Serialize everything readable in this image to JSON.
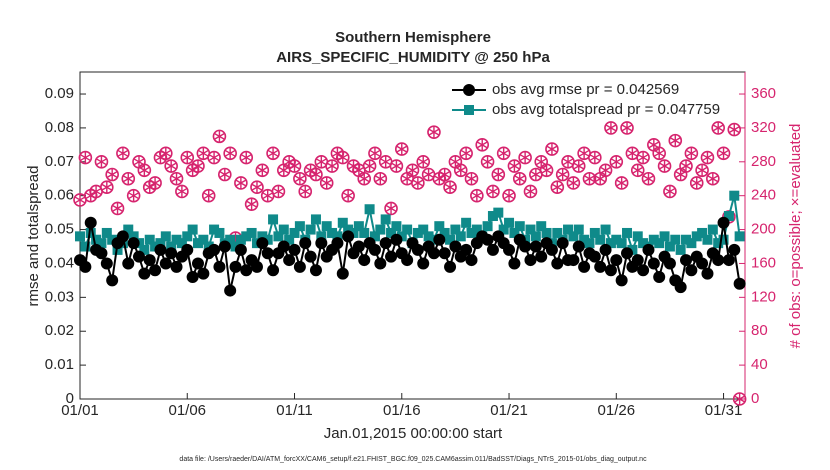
{
  "chart_data": {
    "type": "line",
    "title": "Southern Hemisphere",
    "subtitle": "AIRS_SPECIFIC_HUMIDITY @ 250 hPa",
    "xlabel": "Jan.01,2015 00:00:00 start",
    "ylabel": "rmse and totalspread",
    "y2label": "# of obs: o=possible; ×=evaluated",
    "footnote": "data file: /Users/raeder/DAI/ATM_forcXX/CAM6_setup/f.e21.FHIST_BGC.f09_025.CAM6assim.011/BadSST/Diags_NTrS_2015-01/obs_diag_output.nc",
    "legend": "upper right",
    "xlim": [
      0,
      31
    ],
    "xticks": [
      {
        "value": 0,
        "label": "01/01"
      },
      {
        "value": 5,
        "label": "01/06"
      },
      {
        "value": 10,
        "label": "01/11"
      },
      {
        "value": 15,
        "label": "01/16"
      },
      {
        "value": 20,
        "label": "01/21"
      },
      {
        "value": 25,
        "label": "01/26"
      },
      {
        "value": 30,
        "label": "01/31"
      }
    ],
    "ylim": [
      0,
      0.0965
    ],
    "yticks": [
      0,
      0.01,
      0.02,
      0.03,
      0.04,
      0.05,
      0.06,
      0.07,
      0.08,
      0.09
    ],
    "y2lim": [
      0,
      386
    ],
    "y2ticks": [
      0,
      40,
      80,
      120,
      160,
      200,
      240,
      280,
      320,
      360
    ],
    "x": [
      0,
      0.25,
      0.5,
      0.75,
      1,
      1.25,
      1.5,
      1.75,
      2,
      2.25,
      2.5,
      2.75,
      3,
      3.25,
      3.5,
      3.75,
      4,
      4.25,
      4.5,
      4.75,
      5,
      5.25,
      5.5,
      5.75,
      6,
      6.25,
      6.5,
      6.75,
      7,
      7.25,
      7.5,
      7.75,
      8,
      8.25,
      8.5,
      8.75,
      9,
      9.25,
      9.5,
      9.75,
      10,
      10.25,
      10.5,
      10.75,
      11,
      11.25,
      11.5,
      11.75,
      12,
      12.25,
      12.5,
      12.75,
      13,
      13.25,
      13.5,
      13.75,
      14,
      14.25,
      14.5,
      14.75,
      15,
      15.25,
      15.5,
      15.75,
      16,
      16.25,
      16.5,
      16.75,
      17,
      17.25,
      17.5,
      17.75,
      18,
      18.25,
      18.5,
      18.75,
      19,
      19.25,
      19.5,
      19.75,
      20,
      20.25,
      20.5,
      20.75,
      21,
      21.25,
      21.5,
      21.75,
      22,
      22.25,
      22.5,
      22.75,
      23,
      23.25,
      23.5,
      23.75,
      24,
      24.25,
      24.5,
      24.75,
      25,
      25.25,
      25.5,
      25.75,
      26,
      26.25,
      26.5,
      26.75,
      27,
      27.25,
      27.5,
      27.75,
      28,
      28.25,
      28.5,
      28.75,
      29,
      29.25,
      29.5,
      29.75,
      30,
      30.25,
      30.5,
      30.75
    ],
    "series": [
      {
        "name": "obs avg rmse pr = 0.042569",
        "color": "#000000",
        "marker": "circle",
        "line": true,
        "values": [
          0.041,
          0.039,
          0.052,
          0.044,
          0.043,
          0.04,
          0.035,
          0.046,
          0.048,
          0.04,
          0.046,
          0.042,
          0.037,
          0.041,
          0.038,
          0.044,
          0.04,
          0.043,
          0.039,
          0.042,
          0.044,
          0.036,
          0.04,
          0.037,
          0.043,
          0.044,
          0.039,
          0.045,
          0.032,
          0.039,
          0.044,
          0.038,
          0.041,
          0.039,
          0.046,
          0.043,
          0.038,
          0.043,
          0.045,
          0.041,
          0.044,
          0.039,
          0.046,
          0.042,
          0.038,
          0.046,
          0.042,
          0.044,
          0.046,
          0.037,
          0.048,
          0.043,
          0.045,
          0.041,
          0.046,
          0.044,
          0.04,
          0.046,
          0.042,
          0.047,
          0.043,
          0.041,
          0.046,
          0.044,
          0.04,
          0.045,
          0.043,
          0.047,
          0.043,
          0.039,
          0.045,
          0.042,
          0.044,
          0.041,
          0.046,
          0.048,
          0.047,
          0.044,
          0.048,
          0.046,
          0.044,
          0.04,
          0.047,
          0.045,
          0.041,
          0.045,
          0.042,
          0.046,
          0.044,
          0.04,
          0.046,
          0.041,
          0.041,
          0.045,
          0.039,
          0.043,
          0.042,
          0.039,
          0.044,
          0.038,
          0.041,
          0.035,
          0.043,
          0.039,
          0.041,
          0.038,
          0.044,
          0.04,
          0.036,
          0.042,
          0.04,
          0.035,
          0.033,
          0.041,
          0.038,
          0.042,
          0.04,
          0.037,
          0.043,
          0.041,
          0.052,
          0.041,
          0.044,
          0.034
        ]
      },
      {
        "name": "obs avg totalspread pr = 0.047759",
        "color": "#0f8a8a",
        "marker": "square",
        "line": true,
        "values": [
          0.048,
          0.045,
          0.049,
          0.047,
          0.046,
          0.049,
          0.047,
          0.044,
          0.046,
          0.05,
          0.048,
          0.046,
          0.044,
          0.047,
          0.045,
          0.046,
          0.048,
          0.045,
          0.047,
          0.046,
          0.048,
          0.05,
          0.046,
          0.047,
          0.045,
          0.05,
          0.049,
          0.046,
          0.047,
          0.045,
          0.047,
          0.048,
          0.049,
          0.046,
          0.048,
          0.047,
          0.053,
          0.048,
          0.05,
          0.047,
          0.049,
          0.051,
          0.047,
          0.05,
          0.053,
          0.048,
          0.051,
          0.049,
          0.048,
          0.052,
          0.05,
          0.049,
          0.051,
          0.049,
          0.056,
          0.048,
          0.05,
          0.053,
          0.049,
          0.051,
          0.048,
          0.05,
          0.046,
          0.049,
          0.05,
          0.048,
          0.047,
          0.051,
          0.049,
          0.047,
          0.05,
          0.048,
          0.052,
          0.049,
          0.05,
          0.048,
          0.051,
          0.054,
          0.055,
          0.05,
          0.052,
          0.049,
          0.051,
          0.047,
          0.05,
          0.048,
          0.051,
          0.049,
          0.046,
          0.049,
          0.047,
          0.05,
          0.048,
          0.05,
          0.047,
          0.046,
          0.049,
          0.047,
          0.05,
          0.046,
          0.047,
          0.046,
          0.049,
          0.044,
          0.048,
          0.046,
          0.045,
          0.047,
          0.046,
          0.048,
          0.045,
          0.047,
          0.044,
          0.047,
          0.046,
          0.048,
          0.049,
          0.047,
          0.05,
          0.046,
          0.047,
          0.054,
          0.06,
          0.048
        ]
      },
      {
        "name": "possible",
        "color": "#d6246e",
        "marker": "o",
        "line": false,
        "axis": "y2",
        "values": [
          235,
          285,
          240,
          245,
          280,
          250,
          265,
          225,
          290,
          260,
          240,
          280,
          270,
          250,
          255,
          285,
          290,
          275,
          260,
          245,
          285,
          270,
          275,
          290,
          240,
          285,
          310,
          265,
          290,
          190,
          255,
          285,
          230,
          250,
          270,
          240,
          290,
          245,
          270,
          280,
          275,
          260,
          245,
          270,
          265,
          280,
          255,
          275,
          290,
          285,
          240,
          275,
          270,
          260,
          275,
          290,
          260,
          280,
          225,
          275,
          295,
          260,
          270,
          255,
          280,
          265,
          315,
          260,
          265,
          250,
          280,
          270,
          290,
          260,
          240,
          300,
          280,
          245,
          265,
          290,
          240,
          275,
          260,
          285,
          245,
          265,
          280,
          270,
          295,
          250,
          265,
          280,
          255,
          275,
          290,
          260,
          285,
          260,
          270,
          320,
          280,
          255,
          320,
          290,
          270,
          285,
          260,
          300,
          290,
          275,
          245,
          305,
          265,
          275,
          290,
          255,
          270,
          285,
          260,
          320,
          290,
          215,
          318,
          0
        ]
      },
      {
        "name": "evaluated",
        "color": "#d6246e",
        "marker": "*",
        "line": false,
        "axis": "y2",
        "values": [
          235,
          285,
          240,
          245,
          280,
          250,
          265,
          225,
          290,
          260,
          240,
          280,
          270,
          250,
          255,
          285,
          290,
          275,
          260,
          245,
          285,
          270,
          275,
          290,
          240,
          285,
          310,
          265,
          290,
          190,
          255,
          285,
          230,
          250,
          270,
          240,
          290,
          245,
          270,
          280,
          275,
          260,
          245,
          270,
          265,
          280,
          255,
          275,
          290,
          285,
          240,
          275,
          270,
          260,
          275,
          290,
          260,
          280,
          225,
          275,
          295,
          260,
          270,
          255,
          280,
          265,
          315,
          260,
          265,
          250,
          280,
          270,
          290,
          260,
          240,
          300,
          280,
          245,
          265,
          290,
          240,
          275,
          260,
          285,
          245,
          265,
          280,
          270,
          295,
          250,
          265,
          280,
          255,
          275,
          290,
          260,
          285,
          260,
          270,
          320,
          280,
          255,
          320,
          290,
          270,
          285,
          260,
          300,
          290,
          275,
          245,
          305,
          265,
          275,
          290,
          255,
          270,
          285,
          260,
          320,
          290,
          215,
          318,
          0
        ]
      }
    ]
  }
}
